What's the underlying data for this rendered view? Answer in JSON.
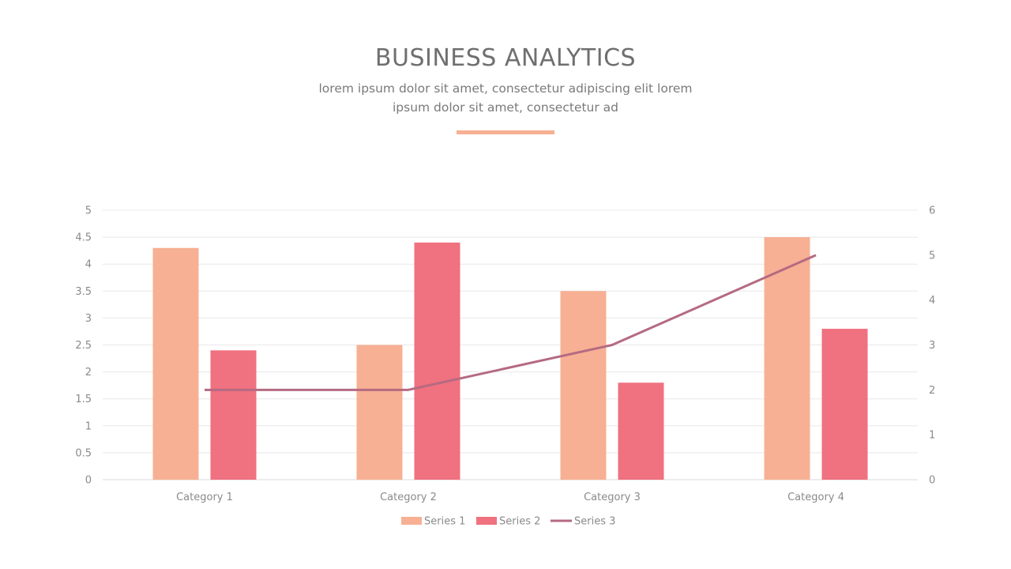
{
  "header": {
    "title": "BUSINESS ANALYTICS",
    "subtitle": "lorem ipsum dolor sit amet, consectetur adipiscing elit  lorem ipsum dolor sit amet, consectetur ad"
  },
  "colors": {
    "series1": "#f7b093",
    "series2": "#f0717f",
    "series3": "#b56a82",
    "accent": "#f7b093",
    "gridline": "#e8e8e8",
    "axis_text": "#8a8a8a"
  },
  "chart_data": {
    "type": "bar",
    "categories": [
      "Category 1",
      "Category 2",
      "Category 3",
      "Category 4"
    ],
    "series": [
      {
        "name": "Series 1",
        "type": "bar",
        "axis": "left",
        "values": [
          4.3,
          2.5,
          3.5,
          4.5
        ]
      },
      {
        "name": "Series 2",
        "type": "bar",
        "axis": "left",
        "values": [
          2.4,
          4.4,
          1.8,
          2.8
        ]
      },
      {
        "name": "Series 3",
        "type": "line",
        "axis": "right",
        "values": [
          2,
          2,
          3,
          5
        ]
      }
    ],
    "y_left": {
      "min": 0,
      "max": 5,
      "step": 0.5,
      "ticks": [
        "0",
        "0.5",
        "1",
        "1.5",
        "2",
        "2.5",
        "3",
        "3.5",
        "4",
        "4.5",
        "5"
      ]
    },
    "y_right": {
      "min": 0,
      "max": 6,
      "step": 1,
      "ticks": [
        "0",
        "1",
        "2",
        "3",
        "4",
        "5",
        "6"
      ]
    },
    "grid": true,
    "legend_position": "bottom"
  }
}
